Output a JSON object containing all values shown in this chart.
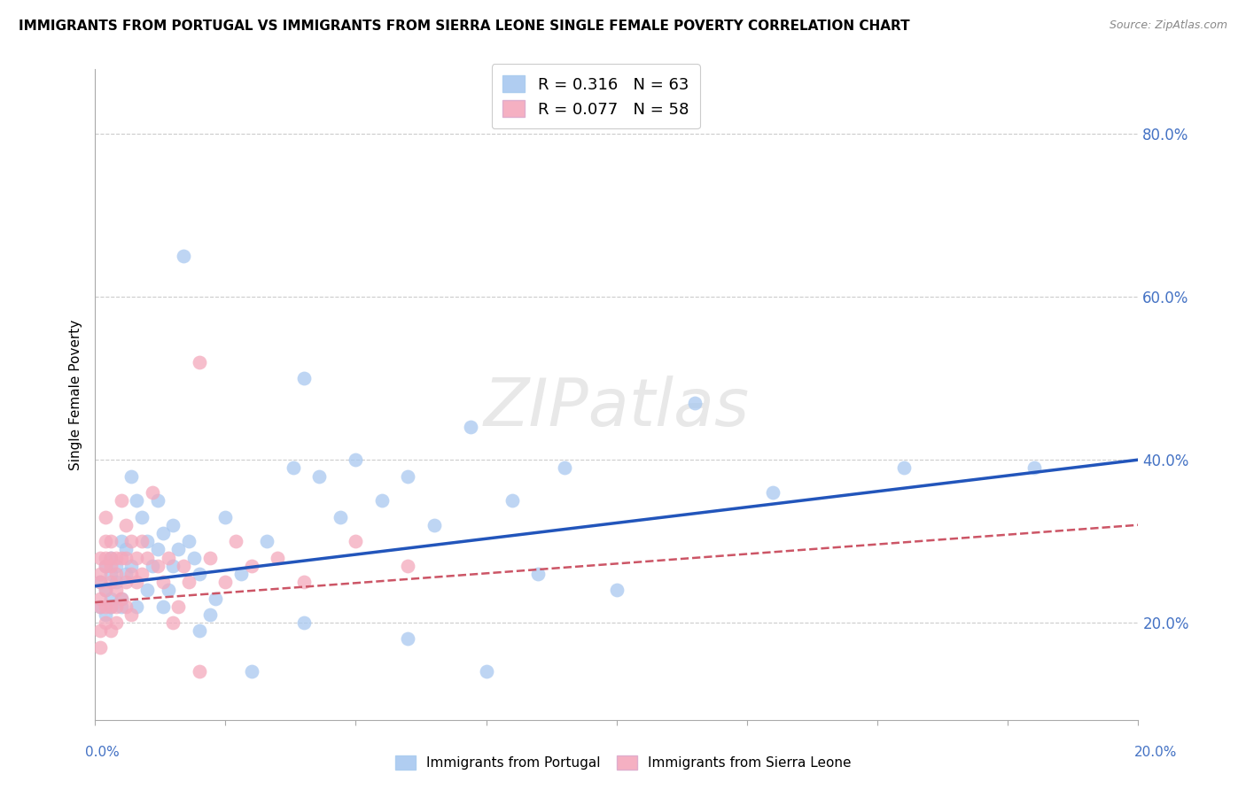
{
  "title": "IMMIGRANTS FROM PORTUGAL VS IMMIGRANTS FROM SIERRA LEONE SINGLE FEMALE POVERTY CORRELATION CHART",
  "source": "Source: ZipAtlas.com",
  "ylabel": "Single Female Poverty",
  "y_tick_labels": [
    "20.0%",
    "40.0%",
    "60.0%",
    "80.0%"
  ],
  "y_tick_values": [
    0.2,
    0.4,
    0.6,
    0.8
  ],
  "legend_entries": [
    {
      "label": "Immigrants from Portugal",
      "color": "#A8C8F0",
      "R": "0.316",
      "N": "63"
    },
    {
      "label": "Immigrants from Sierra Leone",
      "color": "#F4A8BC",
      "R": "0.077",
      "N": "58"
    }
  ],
  "portugal_color": "#A8C8F0",
  "sierra_leone_color": "#F4A8BC",
  "portugal_line_color": "#2255BB",
  "sierra_leone_line_color": "#CC5566",
  "background_color": "#FFFFFF",
  "grid_color": "#CCCCCC",
  "xlim": [
    0,
    0.2
  ],
  "ylim": [
    0.08,
    0.88
  ],
  "portugal_line_y0": 0.245,
  "portugal_line_y1": 0.4,
  "sierra_leone_line_y0": 0.225,
  "sierra_leone_line_y1": 0.32,
  "portugal_x": [
    0.001,
    0.001,
    0.002,
    0.002,
    0.002,
    0.003,
    0.003,
    0.003,
    0.003,
    0.004,
    0.004,
    0.005,
    0.005,
    0.005,
    0.006,
    0.006,
    0.007,
    0.007,
    0.008,
    0.008,
    0.009,
    0.01,
    0.01,
    0.011,
    0.012,
    0.012,
    0.013,
    0.013,
    0.014,
    0.015,
    0.015,
    0.016,
    0.017,
    0.018,
    0.019,
    0.02,
    0.02,
    0.022,
    0.023,
    0.025,
    0.028,
    0.03,
    0.033,
    0.038,
    0.04,
    0.043,
    0.047,
    0.05,
    0.055,
    0.06,
    0.065,
    0.072,
    0.08,
    0.085,
    0.09,
    0.1,
    0.115,
    0.13,
    0.155,
    0.18,
    0.04,
    0.06,
    0.075
  ],
  "portugal_y": [
    0.25,
    0.22,
    0.27,
    0.21,
    0.24,
    0.26,
    0.22,
    0.28,
    0.23,
    0.25,
    0.27,
    0.23,
    0.3,
    0.22,
    0.29,
    0.26,
    0.38,
    0.27,
    0.35,
    0.22,
    0.33,
    0.3,
    0.24,
    0.27,
    0.29,
    0.35,
    0.22,
    0.31,
    0.24,
    0.27,
    0.32,
    0.29,
    0.65,
    0.3,
    0.28,
    0.26,
    0.19,
    0.21,
    0.23,
    0.33,
    0.26,
    0.14,
    0.3,
    0.39,
    0.5,
    0.38,
    0.33,
    0.4,
    0.35,
    0.38,
    0.32,
    0.44,
    0.35,
    0.26,
    0.39,
    0.24,
    0.47,
    0.36,
    0.39,
    0.39,
    0.2,
    0.18,
    0.14
  ],
  "sierra_leone_x": [
    0.001,
    0.001,
    0.001,
    0.001,
    0.001,
    0.001,
    0.001,
    0.002,
    0.002,
    0.002,
    0.002,
    0.002,
    0.002,
    0.002,
    0.003,
    0.003,
    0.003,
    0.003,
    0.003,
    0.003,
    0.004,
    0.004,
    0.004,
    0.004,
    0.004,
    0.005,
    0.005,
    0.005,
    0.006,
    0.006,
    0.006,
    0.006,
    0.007,
    0.007,
    0.007,
    0.008,
    0.008,
    0.009,
    0.009,
    0.01,
    0.011,
    0.012,
    0.013,
    0.014,
    0.015,
    0.016,
    0.017,
    0.018,
    0.02,
    0.022,
    0.025,
    0.027,
    0.03,
    0.035,
    0.04,
    0.05,
    0.06,
    0.02
  ],
  "sierra_leone_y": [
    0.28,
    0.25,
    0.22,
    0.19,
    0.26,
    0.23,
    0.17,
    0.3,
    0.27,
    0.24,
    0.2,
    0.28,
    0.33,
    0.22,
    0.25,
    0.28,
    0.22,
    0.19,
    0.3,
    0.27,
    0.28,
    0.24,
    0.22,
    0.26,
    0.2,
    0.35,
    0.28,
    0.23,
    0.28,
    0.32,
    0.25,
    0.22,
    0.3,
    0.26,
    0.21,
    0.28,
    0.25,
    0.3,
    0.26,
    0.28,
    0.36,
    0.27,
    0.25,
    0.28,
    0.2,
    0.22,
    0.27,
    0.25,
    0.52,
    0.28,
    0.25,
    0.3,
    0.27,
    0.28,
    0.25,
    0.3,
    0.27,
    0.14
  ]
}
